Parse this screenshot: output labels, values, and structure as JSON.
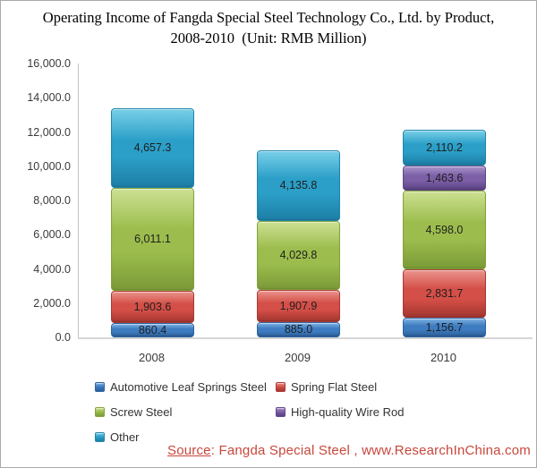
{
  "title": {
    "line1": "Operating Income of Fangda Special Steel Technology Co., Ltd. by Product,",
    "line2": "2008-2010  (Unit: RMB Million)"
  },
  "chart_data": {
    "type": "bar",
    "stacked": true,
    "title": "Operating Income of Fangda Special Steel Technology Co., Ltd. by Product, 2008-2010 (Unit: RMB Million)",
    "unit": "RMB Million",
    "categories": [
      "2008",
      "2009",
      "2010"
    ],
    "series": [
      {
        "name": "Automotive Leaf Springs Steel",
        "values": [
          860.4,
          885.0,
          1156.7
        ],
        "labels": [
          "860.4",
          "885.0",
          "1,156.7"
        ],
        "color": {
          "light": "#7fb4e4",
          "base": "#3e7cc1",
          "dark": "#2b5e97",
          "border": "#2f66a3"
        }
      },
      {
        "name": "Spring Flat Steel",
        "values": [
          1903.6,
          1907.9,
          2831.7
        ],
        "labels": [
          "1,903.6",
          "1,907.9",
          "2,831.7"
        ],
        "color": {
          "light": "#ea948d",
          "base": "#d44f47",
          "dark": "#a33630",
          "border": "#ab3a34"
        }
      },
      {
        "name": "Screw Steel",
        "values": [
          6011.1,
          4029.8,
          4598.0
        ],
        "labels": [
          "6,011.1",
          "4,029.8",
          "4,598.0"
        ],
        "color": {
          "light": "#cde092",
          "base": "#9cbd4d",
          "dark": "#7b9a38",
          "border": "#84a43d"
        }
      },
      {
        "name": "High-quality Wire Rod",
        "values": [
          0,
          0,
          1463.6
        ],
        "labels": [
          "",
          "",
          "1,463.6"
        ],
        "color": {
          "light": "#ab95ca",
          "base": "#7c5fa7",
          "dark": "#5a4180",
          "border": "#614889"
        }
      },
      {
        "name": "Other",
        "values": [
          4657.3,
          4135.8,
          2110.2
        ],
        "labels": [
          "4,657.3",
          "4,135.8",
          "2,110.2"
        ],
        "color": {
          "light": "#78cfe8",
          "base": "#2b9fc8",
          "dark": "#1d7ea5",
          "border": "#2287ac"
        }
      }
    ],
    "ylim": [
      0,
      16000
    ],
    "ytick_step": 2000,
    "ytick_labels": [
      "16,000.0",
      "14,000.0",
      "12,000.0",
      "10,000.0",
      "8,000.0",
      "6,000.0",
      "4,000.0",
      "2,000.0",
      "0.0"
    ],
    "legend_position": "bottom",
    "grid": false
  },
  "source": {
    "label": "Source",
    "rest": ": Fangda Special Steel , www.ResearchInChina.com",
    "color": "#c8473c"
  },
  "colors": {
    "frame_border": "#a9a9a9",
    "axis_line": "#c3c3c3",
    "baseline": "#d6d6d6",
    "tick_text": "#3a3a3a",
    "data_label_text": "#1f1f1f",
    "legend_text": "#333333"
  }
}
